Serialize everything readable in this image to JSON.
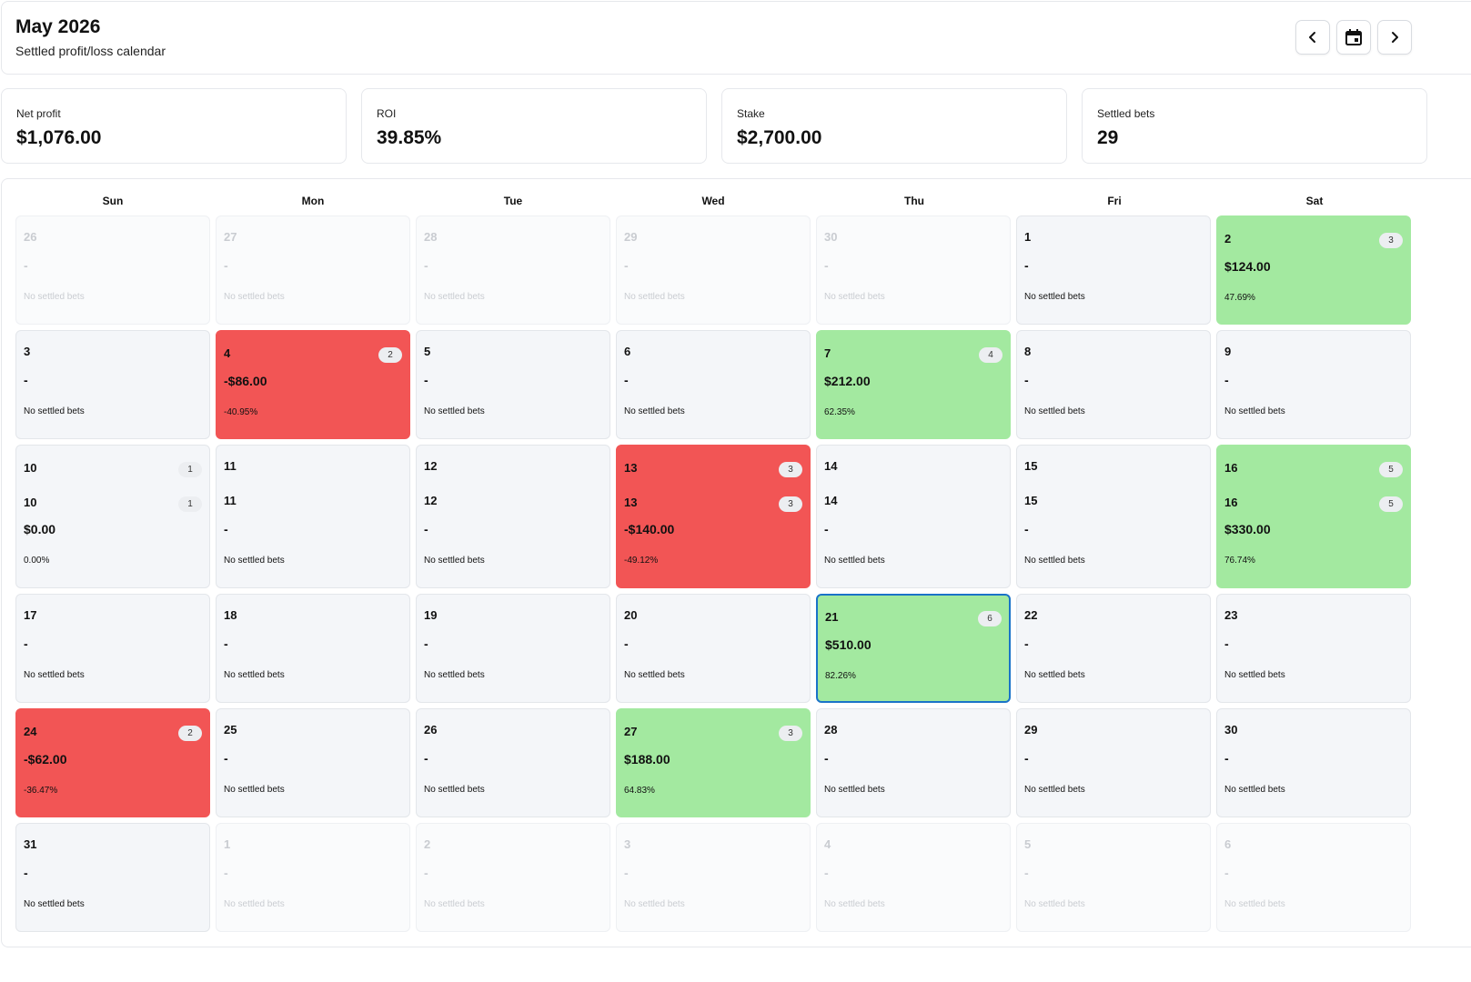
{
  "header": {
    "title": "May 2026",
    "subtitle": "Settled profit/loss calendar"
  },
  "nav": {
    "prev_icon": "chevron-left-icon",
    "today_icon": "calendar-icon",
    "next_icon": "chevron-right-icon"
  },
  "stats": [
    {
      "label": "Net profit",
      "value": "$1,076.00"
    },
    {
      "label": "ROI",
      "value": "39.85%"
    },
    {
      "label": "Stake",
      "value": "$2,700.00"
    },
    {
      "label": "Settled bets",
      "value": "29"
    }
  ],
  "colors": {
    "profit": "#a3e9a0",
    "loss": "#f25555",
    "empty": "#f4f6f9",
    "selected_border": "#1a73c8"
  },
  "weekdays": [
    "Sun",
    "Mon",
    "Tue",
    "Wed",
    "Thu",
    "Fri",
    "Sat"
  ],
  "weeks": [
    [
      {
        "day": "26",
        "status": "outside",
        "profit": "-",
        "note": "No settled bets"
      },
      {
        "day": "27",
        "status": "outside",
        "profit": "-",
        "note": "No settled bets"
      },
      {
        "day": "28",
        "status": "outside",
        "profit": "-",
        "note": "No settled bets"
      },
      {
        "day": "29",
        "status": "outside",
        "profit": "-",
        "note": "No settled bets"
      },
      {
        "day": "30",
        "status": "outside",
        "profit": "-",
        "note": "No settled bets"
      },
      {
        "day": "1",
        "status": "empty",
        "profit": "-",
        "note": "No settled bets"
      },
      {
        "day": "2",
        "status": "profit",
        "bets": "3",
        "profit": "$124.00",
        "note": "47.69%"
      }
    ],
    [
      {
        "day": "3",
        "status": "empty",
        "profit": "-",
        "note": "No settled bets"
      },
      {
        "day": "4",
        "status": "loss",
        "bets": "2",
        "profit": "-$86.00",
        "note": "-40.95%"
      },
      {
        "day": "5",
        "status": "empty",
        "profit": "-",
        "note": "No settled bets"
      },
      {
        "day": "6",
        "status": "empty",
        "profit": "-",
        "note": "No settled bets"
      },
      {
        "day": "7",
        "status": "profit",
        "bets": "4",
        "profit": "$212.00",
        "note": "62.35%"
      },
      {
        "day": "8",
        "status": "empty",
        "profit": "-",
        "note": "No settled bets"
      },
      {
        "day": "9",
        "status": "empty",
        "profit": "-",
        "note": "No settled bets"
      }
    ],
    [
      {
        "day": "10",
        "day_repeat": "10",
        "status": "empty",
        "bets": "1",
        "bets_repeat": "1",
        "profit": "$0.00",
        "note": "0.00%"
      },
      {
        "day": "11",
        "day_repeat": "11",
        "status": "empty",
        "profit": "-",
        "note": "No settled bets"
      },
      {
        "day": "12",
        "day_repeat": "12",
        "status": "empty",
        "profit": "-",
        "note": "No settled bets"
      },
      {
        "day": "13",
        "day_repeat": "13",
        "status": "loss",
        "bets": "3",
        "bets_repeat": "3",
        "profit": "-$140.00",
        "note": "-49.12%"
      },
      {
        "day": "14",
        "day_repeat": "14",
        "status": "empty",
        "profit": "-",
        "note": "No settled bets"
      },
      {
        "day": "15",
        "day_repeat": "15",
        "status": "empty",
        "profit": "-",
        "note": "No settled bets"
      },
      {
        "day": "16",
        "day_repeat": "16",
        "status": "profit",
        "bets": "5",
        "bets_repeat": "5",
        "profit": "$330.00",
        "note": "76.74%"
      }
    ],
    [
      {
        "day": "17",
        "status": "empty",
        "profit": "-",
        "note": "No settled bets"
      },
      {
        "day": "18",
        "status": "empty",
        "profit": "-",
        "note": "No settled bets"
      },
      {
        "day": "19",
        "status": "empty",
        "profit": "-",
        "note": "No settled bets"
      },
      {
        "day": "20",
        "status": "empty",
        "profit": "-",
        "note": "No settled bets"
      },
      {
        "day": "21",
        "status": "profit",
        "selected": true,
        "bets": "6",
        "profit": "$510.00",
        "note": "82.26%"
      },
      {
        "day": "22",
        "status": "empty",
        "profit": "-",
        "note": "No settled bets"
      },
      {
        "day": "23",
        "status": "empty",
        "profit": "-",
        "note": "No settled bets"
      }
    ],
    [
      {
        "day": "24",
        "status": "loss",
        "bets": "2",
        "profit": "-$62.00",
        "note": "-36.47%"
      },
      {
        "day": "25",
        "status": "empty",
        "profit": "-",
        "note": "No settled bets"
      },
      {
        "day": "26",
        "status": "empty",
        "profit": "-",
        "note": "No settled bets"
      },
      {
        "day": "27",
        "status": "profit",
        "bets": "3",
        "profit": "$188.00",
        "note": "64.83%"
      },
      {
        "day": "28",
        "status": "empty",
        "profit": "-",
        "note": "No settled bets"
      },
      {
        "day": "29",
        "status": "empty",
        "profit": "-",
        "note": "No settled bets"
      },
      {
        "day": "30",
        "status": "empty",
        "profit": "-",
        "note": "No settled bets"
      }
    ],
    [
      {
        "day": "31",
        "status": "empty",
        "profit": "-",
        "note": "No settled bets"
      },
      {
        "day": "1",
        "status": "outside",
        "profit": "-",
        "note": "No settled bets"
      },
      {
        "day": "2",
        "status": "outside",
        "profit": "-",
        "note": "No settled bets"
      },
      {
        "day": "3",
        "status": "outside",
        "profit": "-",
        "note": "No settled bets"
      },
      {
        "day": "4",
        "status": "outside",
        "profit": "-",
        "note": "No settled bets"
      },
      {
        "day": "5",
        "status": "outside",
        "profit": "-",
        "note": "No settled bets"
      },
      {
        "day": "6",
        "status": "outside",
        "profit": "-",
        "note": "No settled bets"
      }
    ]
  ]
}
